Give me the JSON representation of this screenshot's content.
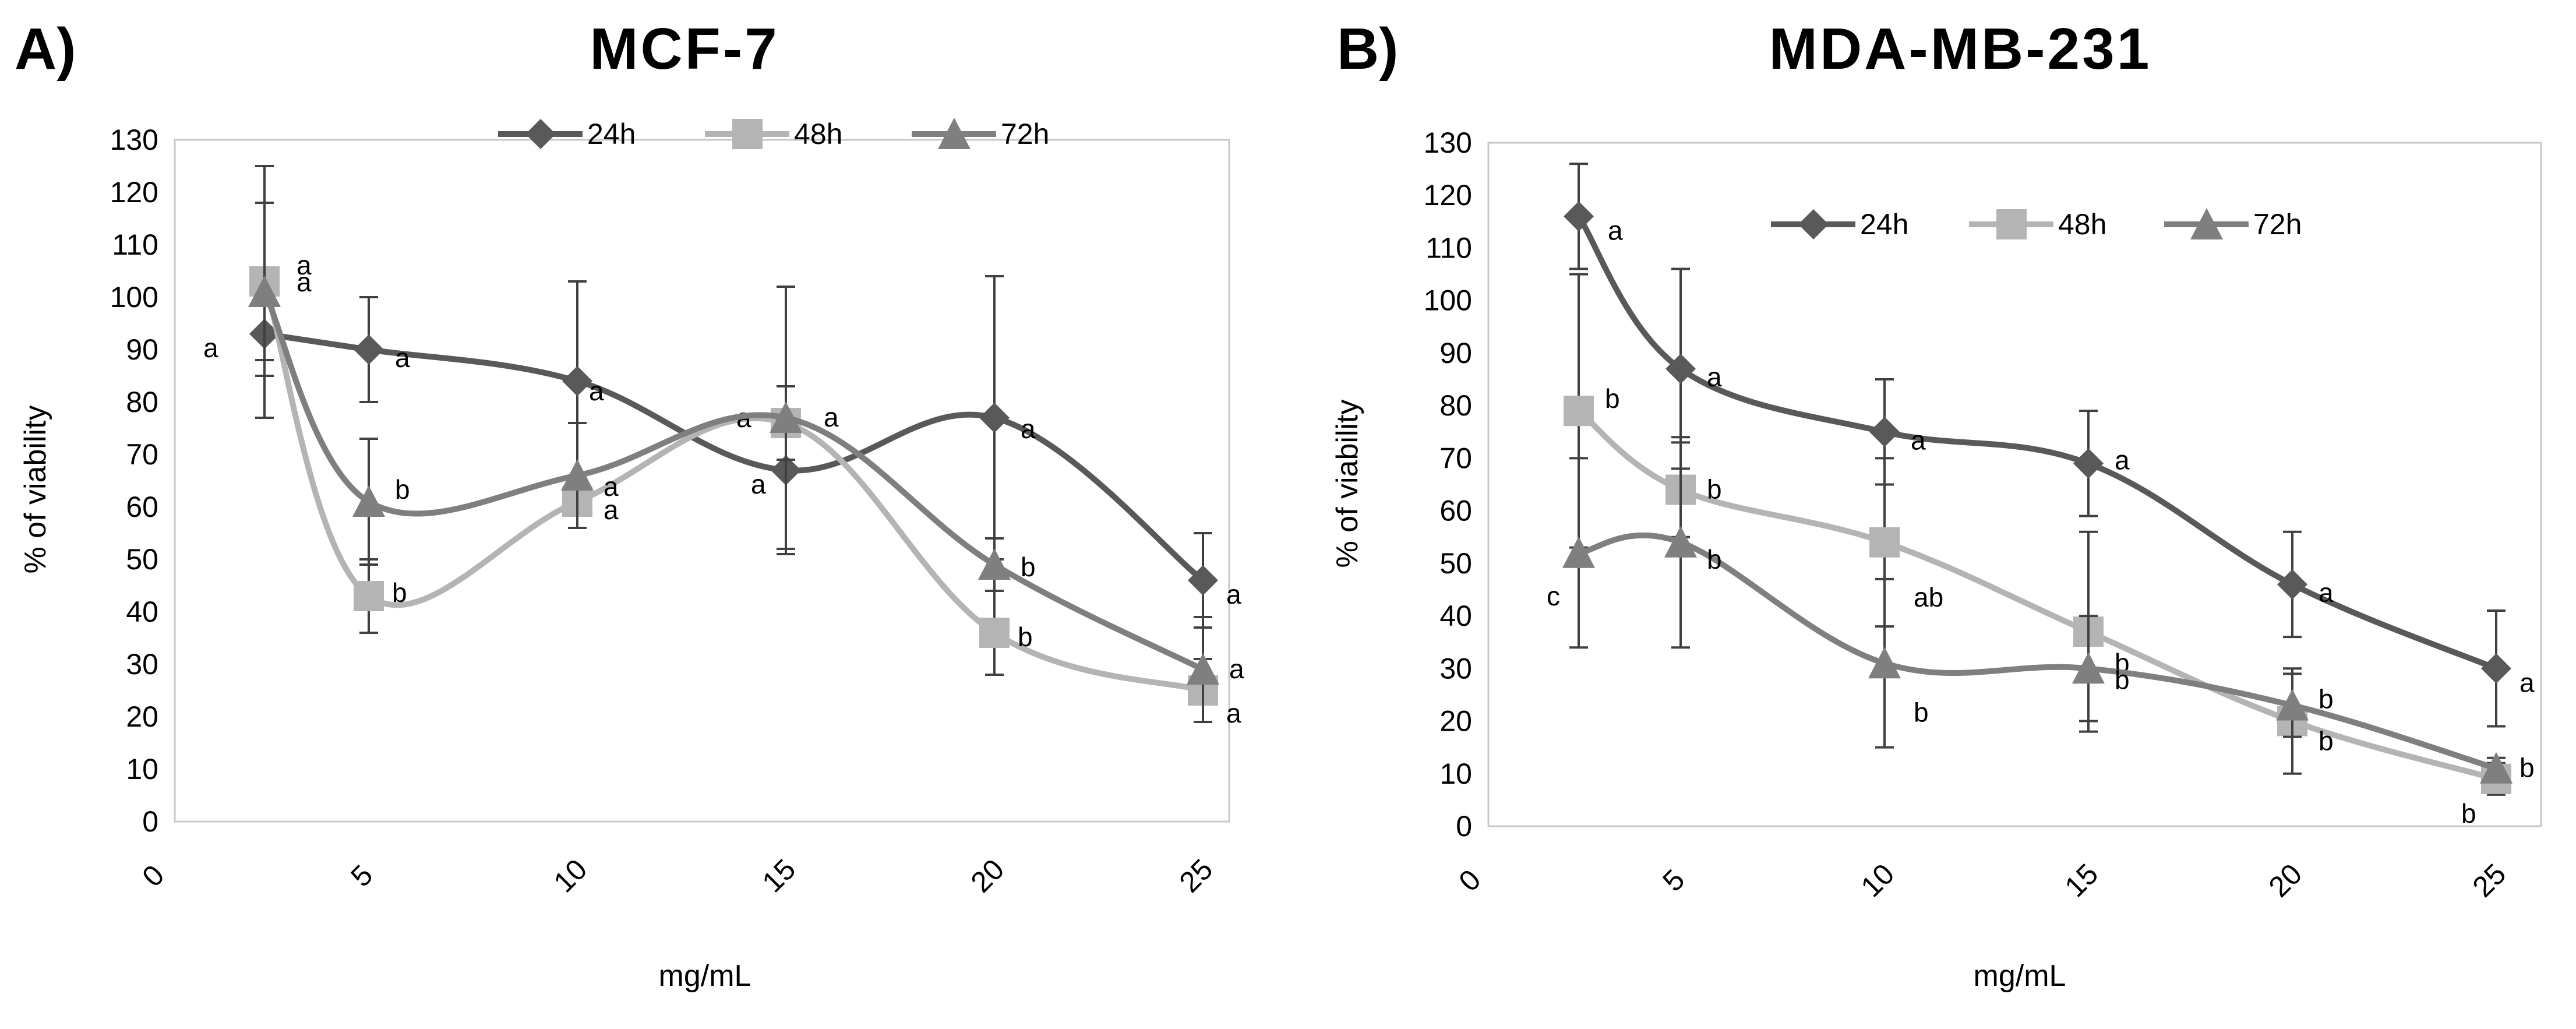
{
  "charts": [
    {
      "letter": "A)",
      "title": "MCF-7",
      "xlabel": "mg/mL",
      "ylabel": "% of viability"
    },
    {
      "letter": "B)",
      "title": "MDA-MB-231",
      "xlabel": "mg/mL",
      "ylabel": "% of viability"
    }
  ],
  "chart_data": [
    {
      "type": "line",
      "title": "MCF-7",
      "xlabel": "mg/mL",
      "ylabel": "% of viability",
      "x_ticks": [
        "0",
        "5",
        "10",
        "15",
        "20",
        "25"
      ],
      "y_ticks": [
        "0",
        "10",
        "20",
        "30",
        "40",
        "50",
        "60",
        "70",
        "80",
        "90",
        "100",
        "110",
        "120",
        "130"
      ],
      "x": [
        2.5,
        5,
        10,
        15,
        20,
        25
      ],
      "ylim": [
        0,
        130
      ],
      "xlim": [
        0,
        27.5
      ],
      "legend_position": "top",
      "grid": false,
      "series": [
        {
          "name": "24h",
          "marker": "diamond",
          "color": "#595959",
          "values": [
            93,
            90,
            84,
            67,
            77,
            46
          ],
          "errors": [
            8,
            10,
            19,
            16,
            27,
            9
          ],
          "labels": [
            "a",
            "a",
            "a",
            "a",
            "a",
            "a"
          ]
        },
        {
          "name": "48h",
          "marker": "square",
          "color": "#b4b4b4",
          "values": [
            103,
            43,
            61,
            76,
            36,
            25
          ],
          "errors": [
            15,
            7,
            5,
            7,
            8,
            6
          ],
          "labels": [
            "a",
            "b",
            "a",
            "a",
            "b",
            "a"
          ]
        },
        {
          "name": "72h",
          "marker": "triangle",
          "color": "#7f7f7f",
          "values": [
            101,
            61,
            66,
            77,
            49,
            29
          ],
          "errors": [
            24,
            12,
            10,
            25,
            5,
            10
          ],
          "labels": [
            "a",
            "b",
            "a",
            "a",
            "b",
            "a"
          ]
        }
      ]
    },
    {
      "type": "line",
      "title": "MDA-MB-231",
      "xlabel": "mg/mL",
      "ylabel": "% of viability",
      "x_ticks": [
        "0",
        "5",
        "10",
        "15",
        "20",
        "25"
      ],
      "y_ticks": [
        "0",
        "10",
        "20",
        "30",
        "40",
        "50",
        "60",
        "70",
        "80",
        "90",
        "100",
        "110",
        "120",
        "130"
      ],
      "x": [
        2.5,
        5,
        10,
        15,
        20,
        25
      ],
      "ylim": [
        0,
        130
      ],
      "xlim": [
        0,
        27.5
      ],
      "legend_position": "top",
      "grid": false,
      "series": [
        {
          "name": "24h",
          "marker": "diamond",
          "color": "#595959",
          "values": [
            116,
            87,
            75,
            69,
            46,
            30
          ],
          "errors": [
            10,
            19,
            10,
            10,
            10,
            11
          ],
          "labels": [
            "a",
            "a",
            "a",
            "a",
            "a",
            "a"
          ]
        },
        {
          "name": "48h",
          "marker": "square",
          "color": "#b4b4b4",
          "values": [
            79,
            64,
            54,
            37,
            20,
            9
          ],
          "errors": [
            26,
            9,
            16,
            19,
            10,
            3
          ],
          "labels": [
            "b",
            "b",
            "ab",
            "b",
            "b",
            "b"
          ]
        },
        {
          "name": "72h",
          "marker": "triangle",
          "color": "#7f7f7f",
          "values": [
            52,
            54,
            31,
            30,
            23,
            11
          ],
          "errors": [
            18,
            20,
            16,
            10,
            6,
            2
          ],
          "labels": [
            "c",
            "b",
            "b",
            "b",
            "b",
            "b"
          ]
        }
      ]
    }
  ]
}
